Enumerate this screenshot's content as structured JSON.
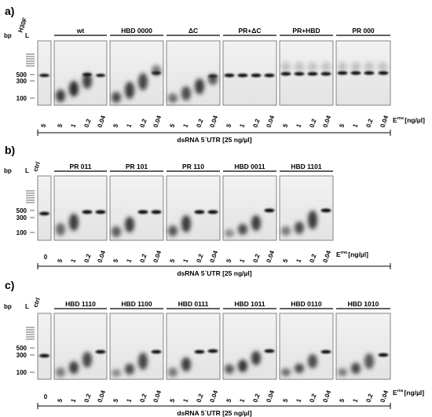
{
  "size_unit": "bp",
  "ladder_label": "L",
  "marker_labels": [
    "500",
    "300",
    "100"
  ],
  "axis_label": "dsRNA 5´UTR [25 ng/µl]",
  "conc_unit": "E",
  "conc_sup": "rns",
  "conc_suffix": "[ng/µl]",
  "panels": [
    {
      "label": "a)",
      "control_label": "H30F",
      "groups": [
        {
          "title": "wt",
          "lanes": [
            "5",
            "1",
            "0.2",
            "0.04"
          ]
        },
        {
          "title": "HBD 0000",
          "lanes": [
            "5",
            "1",
            "0.2",
            "0.04"
          ]
        },
        {
          "title": "ΔC",
          "lanes": [
            "5",
            "1",
            "0.2",
            "0.04"
          ]
        },
        {
          "title": "PR+ΔC",
          "lanes": [
            "5",
            "1",
            "0.2",
            "0.04"
          ]
        },
        {
          "title": "PR+HBD",
          "lanes": [
            "5",
            "1",
            "0.2",
            "0.04"
          ]
        },
        {
          "title": "PR 000",
          "lanes": [
            "5",
            "1",
            "0.2",
            "0.04"
          ]
        }
      ]
    },
    {
      "label": "b)",
      "control_label": "ctrl",
      "control_conc": "0",
      "groups": [
        {
          "title": "PR 011",
          "lanes": [
            "5",
            "1",
            "0.2",
            "0.04"
          ]
        },
        {
          "title": "PR 101",
          "lanes": [
            "5",
            "1",
            "0.2",
            "0.04"
          ]
        },
        {
          "title": "PR 110",
          "lanes": [
            "5",
            "1",
            "0.2",
            "0.04"
          ]
        },
        {
          "title": "HBD 0011",
          "lanes": [
            "5",
            "1",
            "0.2",
            "0.04"
          ]
        },
        {
          "title": "HBD 1101",
          "lanes": [
            "5",
            "1",
            "0.2",
            "0.04"
          ]
        }
      ]
    },
    {
      "label": "c)",
      "control_label": "ctrl",
      "control_conc": "0",
      "groups": [
        {
          "title": "HBD 1110",
          "lanes": [
            "5",
            "1",
            "0.2",
            "0.04"
          ]
        },
        {
          "title": "HBD 1100",
          "lanes": [
            "5",
            "1",
            "0.2",
            "0.04"
          ]
        },
        {
          "title": "HBD 0111",
          "lanes": [
            "5",
            "1",
            "0.2",
            "0.04"
          ]
        },
        {
          "title": "HBD 1011",
          "lanes": [
            "5",
            "1",
            "0.2",
            "0.04"
          ]
        },
        {
          "title": "HBD 0110",
          "lanes": [
            "5",
            "1",
            "0.2",
            "0.04"
          ]
        },
        {
          "title": "HBD 1010",
          "lanes": [
            "5",
            "1",
            "0.2",
            "0.04"
          ]
        }
      ]
    }
  ]
}
